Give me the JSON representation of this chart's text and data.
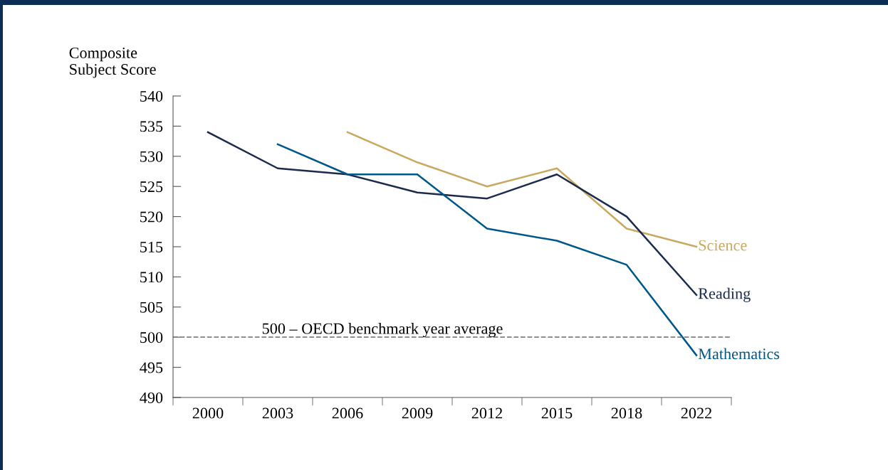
{
  "chart_data": {
    "type": "line",
    "ylabel": "Composite\nSubject Score",
    "categories": [
      "2000",
      "2003",
      "2006",
      "2009",
      "2012",
      "2015",
      "2018",
      "2022"
    ],
    "series": [
      {
        "name": "Science",
        "color": "#c8a95f",
        "values": [
          null,
          null,
          534,
          529,
          525,
          528,
          518,
          515
        ]
      },
      {
        "name": "Reading",
        "color": "#1c2b4d",
        "values": [
          534,
          528,
          527,
          524,
          523,
          527,
          520,
          507
        ]
      },
      {
        "name": "Mathematics",
        "color": "#00578a",
        "values": [
          null,
          532,
          527,
          527,
          518,
          516,
          512,
          497
        ]
      }
    ],
    "ylim": [
      490,
      540
    ],
    "yticks": [
      490,
      495,
      500,
      505,
      510,
      515,
      520,
      525,
      530,
      535,
      540
    ],
    "ref_lines": [
      {
        "axis": "y",
        "value": 500,
        "label": "500 – OECD benchmark year average",
        "color": "#808080",
        "line_style": "dashed"
      }
    ],
    "grid": false,
    "legend": false,
    "marker": "none",
    "line_style": "solid"
  }
}
